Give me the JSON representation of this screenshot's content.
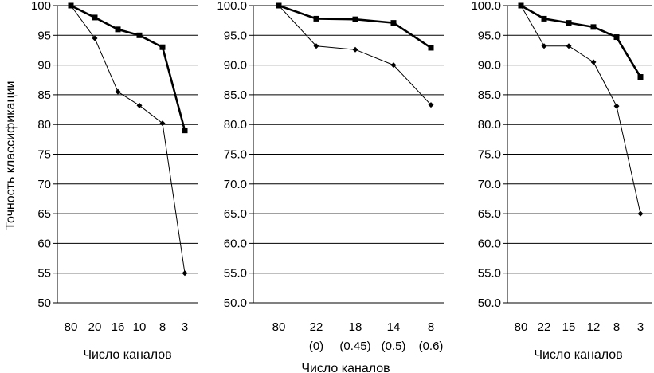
{
  "ylabel": "Точность классификации",
  "chart_data": [
    {
      "type": "line",
      "categories": [
        "80",
        "20",
        "16",
        "10",
        "8",
        "3"
      ],
      "category_sublabels": [],
      "xlabel": "Число каналов",
      "ylim": [
        50,
        100
      ],
      "yticks": [
        "50",
        "55",
        "60",
        "65",
        "70",
        "75",
        "80",
        "85",
        "90",
        "95",
        "100"
      ],
      "grid": true,
      "series": [
        {
          "marker": "square",
          "stroke": "thick",
          "values": [
            100,
            98,
            96,
            95,
            93,
            79
          ]
        },
        {
          "marker": "diamond",
          "stroke": "thin",
          "values": [
            100,
            94.5,
            85.5,
            83.2,
            80.2,
            55
          ]
        }
      ]
    },
    {
      "type": "line",
      "categories": [
        "80",
        "22",
        "18",
        "14",
        "8"
      ],
      "category_sublabels": [
        "",
        "(0)",
        "(0.45)",
        "(0.5)",
        "(0.6)"
      ],
      "xlabel": "Число каналов",
      "ylim": [
        50,
        100
      ],
      "yticks": [
        "50.0",
        "55.0",
        "60.0",
        "65.0",
        "70.0",
        "75.0",
        "80.0",
        "85.0",
        "90.0",
        "95.0",
        "100.0"
      ],
      "grid": true,
      "series": [
        {
          "marker": "square",
          "stroke": "thick",
          "values": [
            100,
            97.8,
            97.7,
            97.1,
            92.9
          ]
        },
        {
          "marker": "diamond",
          "stroke": "thin",
          "values": [
            100,
            93.2,
            92.6,
            90.0,
            83.3
          ]
        }
      ]
    },
    {
      "type": "line",
      "categories": [
        "80",
        "22",
        "15",
        "12",
        "8",
        "3"
      ],
      "category_sublabels": [],
      "xlabel": "Число каналов",
      "ylim": [
        50,
        100
      ],
      "yticks": [
        "50.0",
        "55.0",
        "60.0",
        "65.0",
        "70.0",
        "75.0",
        "80.0",
        "85.0",
        "90.0",
        "95.0",
        "100.0"
      ],
      "grid": true,
      "series": [
        {
          "marker": "square",
          "stroke": "thick",
          "values": [
            100,
            97.8,
            97.1,
            96.4,
            94.7,
            88
          ]
        },
        {
          "marker": "diamond",
          "stroke": "thin",
          "values": [
            100,
            93.2,
            93.2,
            90.5,
            83.1,
            65
          ]
        }
      ]
    }
  ]
}
